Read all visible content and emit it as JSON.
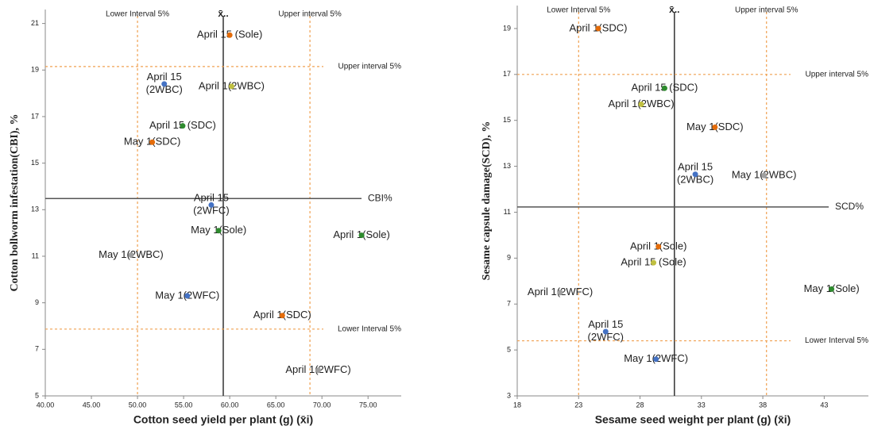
{
  "chart_data": [
    {
      "type": "scatter",
      "xlabel": "Cotton seed yield per plant (g) (x̄i)",
      "ylabel": "Cotton bollworm infestation(CBI), %",
      "xlim": [
        40,
        78.6
      ],
      "ylim": [
        5,
        21.6
      ],
      "xticks": [
        {
          "value": 40,
          "label": "40.00"
        },
        {
          "value": 45,
          "label": "45.00"
        },
        {
          "value": 50,
          "label": "50.00"
        },
        {
          "value": 55,
          "label": "55.00"
        },
        {
          "value": 60,
          "label": "60.00"
        },
        {
          "value": 65,
          "label": "65.00"
        },
        {
          "value": 70,
          "label": "70.00"
        },
        {
          "value": 75,
          "label": "75.00"
        }
      ],
      "yticks": [
        5,
        7,
        9,
        11,
        13,
        15,
        17,
        19,
        21
      ],
      "vlines": [
        {
          "value": 50,
          "label": "Lower Interval 5%",
          "style": "dashed"
        },
        {
          "value": 59.3,
          "label": "x̄..",
          "style": "solid"
        },
        {
          "value": 68.7,
          "label": "Upper interval 5%",
          "style": "dashed"
        }
      ],
      "hlines": [
        {
          "value": 19.15,
          "label": "Upper interval 5%",
          "style": "dashed"
        },
        {
          "value": 13.48,
          "label": "CBI%",
          "style": "solid"
        },
        {
          "value": 7.87,
          "label": "Lower Interval 5%",
          "style": "dashed"
        }
      ],
      "point_labels": [
        "April 15 (Sole)",
        "April 15\n(2WBC)",
        "April 1(2WBC)",
        "April 15 (SDC)",
        "May 1(SDC)",
        "April 15\n(2WFC)",
        "May 1(Sole)",
        "April 1(Sole)",
        "May 1(2WBC)",
        "May 1(2WFC)",
        "April 1(SDC)",
        "April 1(2WFC)"
      ],
      "x": [
        60.0,
        52.9,
        60.2,
        54.9,
        51.6,
        58.0,
        58.8,
        74.3,
        49.3,
        55.4,
        65.7,
        69.6
      ],
      "values": [
        20.5,
        18.4,
        18.3,
        16.6,
        15.9,
        13.2,
        12.1,
        11.9,
        11.05,
        9.3,
        8.45,
        6.1
      ],
      "colors": [
        "#e46c0a",
        "#4472c4",
        "#bfbf40",
        "#2e8b2e",
        "#e46c0a",
        "#4472c4",
        "#2e8b2e",
        "#2e8b2e",
        "#a0a0a0",
        "#4472c4",
        "#e46c0a",
        "#a0a0a0"
      ]
    },
    {
      "type": "scatter",
      "xlabel": "Sesame seed weight per plant (g) (x̄i)",
      "ylabel": "Sesame capsule damage(SCD), %",
      "xlim": [
        18,
        46.6
      ],
      "ylim": [
        3,
        20
      ],
      "xticks": [
        18,
        23,
        28,
        33,
        38,
        43
      ],
      "yticks": [
        3,
        5,
        7,
        9,
        11,
        13,
        15,
        17,
        19
      ],
      "vlines": [
        {
          "value": 23.0,
          "label": "Lower Interval 5%",
          "style": "dashed"
        },
        {
          "value": 30.8,
          "label": "x̄..",
          "style": "solid"
        },
        {
          "value": 38.3,
          "label": "Upper interval 5%",
          "style": "dashed"
        }
      ],
      "hlines": [
        {
          "value": 17.0,
          "label": "Upper interval 5%",
          "style": "dashed"
        },
        {
          "value": 11.23,
          "label": "SCD%",
          "style": "solid"
        },
        {
          "value": 5.4,
          "label": "Lower Interval 5%",
          "style": "dashed"
        }
      ],
      "point_labels": [
        "April 1(SDC)",
        "April 15 (SDC)",
        "April 1(2WBC)",
        "May 1(SDC)",
        "April 15\n(2WBC)",
        "May 1(2WBC)",
        "April 1(Sole)",
        "April 15 (Sole)",
        "April 1(2WFC)",
        "May 1(Sole)",
        "April 15\n(2WFC)",
        "May 1(2WFC)"
      ],
      "x": [
        24.6,
        30.0,
        28.1,
        34.1,
        32.5,
        38.1,
        29.5,
        29.1,
        21.5,
        43.6,
        25.2,
        29.3
      ],
      "values": [
        19.0,
        16.4,
        15.7,
        14.7,
        12.65,
        12.6,
        9.5,
        8.8,
        7.5,
        7.65,
        5.8,
        4.6
      ],
      "colors": [
        "#e46c0a",
        "#2e8b2e",
        "#bfbf40",
        "#e46c0a",
        "#4472c4",
        "#a0a0a0",
        "#e46c0a",
        "#bfbf40",
        "#a0a0a0",
        "#2e8b2e",
        "#4472c4",
        "#4472c4"
      ]
    }
  ]
}
